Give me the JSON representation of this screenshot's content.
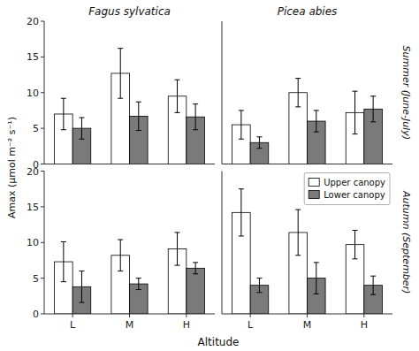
{
  "chart_data": [
    {
      "type": "bar",
      "title": "Fagus sylvatica",
      "ylabel": "Amax (μmol m⁻² s⁻¹)",
      "categories": [
        "L",
        "M",
        "H"
      ],
      "series": [
        {
          "color": "#FFFFFF",
          "values": [
            7.0,
            12.7,
            9.5
          ],
          "errors": [
            2.2,
            3.5,
            2.3
          ]
        },
        {
          "color": "#7A7A7A",
          "values": [
            5.0,
            6.7,
            6.6
          ],
          "errors": [
            1.5,
            2.0,
            1.8
          ]
        }
      ],
      "ylim": [
        0,
        20
      ],
      "yticks": [
        0,
        5,
        10,
        15,
        20
      ],
      "tick_labels": "y"
    },
    {
      "type": "bar",
      "title": "Picea abies",
      "annotations": [
        "Summer (June-July)"
      ],
      "categories": [
        "L",
        "M",
        "H"
      ],
      "series": [
        {
          "color": "#FFFFFF",
          "values": [
            5.5,
            10.0,
            7.2
          ],
          "errors": [
            2.0,
            2.0,
            3.0
          ]
        },
        {
          "color": "#7A7A7A",
          "values": [
            3.0,
            6.0,
            7.7
          ],
          "errors": [
            0.8,
            1.5,
            1.8
          ]
        }
      ],
      "ylim": [
        0,
        20
      ],
      "yticks": [
        0,
        5,
        10,
        15,
        20
      ],
      "tick_labels": false
    },
    {
      "type": "bar",
      "xlabel": "Altitude",
      "categories": [
        "L",
        "M",
        "H"
      ],
      "series": [
        {
          "color": "#FFFFFF",
          "values": [
            7.3,
            8.2,
            9.1
          ],
          "errors": [
            2.8,
            2.2,
            2.3
          ]
        },
        {
          "color": "#7A7A7A",
          "values": [
            3.8,
            4.2,
            6.4
          ],
          "errors": [
            2.2,
            0.8,
            0.8
          ]
        }
      ],
      "ylim": [
        0,
        20
      ],
      "yticks": [
        0,
        5,
        10,
        15,
        20
      ]
    },
    {
      "type": "bar",
      "annotations": [
        "Autumn (September)"
      ],
      "categories": [
        "L",
        "M",
        "H"
      ],
      "series": [
        {
          "name": "Upper canopy",
          "color": "#FFFFFF",
          "values": [
            14.2,
            11.4,
            9.7
          ],
          "errors": [
            3.3,
            3.2,
            2.0
          ]
        },
        {
          "name": "Lower canopy",
          "color": "#7A7A7A",
          "values": [
            4.0,
            5.0,
            4.0
          ],
          "errors": [
            1.0,
            2.2,
            1.3
          ]
        }
      ],
      "ylim": [
        0,
        20
      ],
      "yticks": [
        0,
        5,
        10,
        15,
        20
      ],
      "tick_labels": "x",
      "legend": "upper right"
    }
  ]
}
